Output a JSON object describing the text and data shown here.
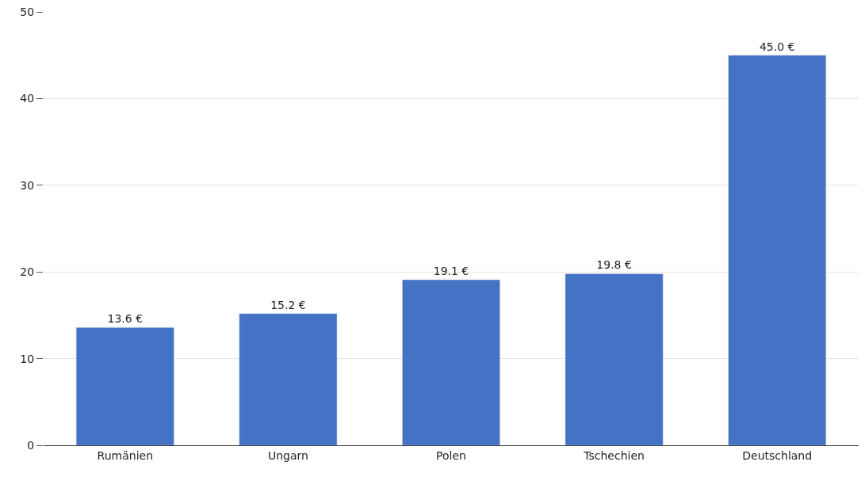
{
  "chart_data": {
    "type": "bar",
    "categories": [
      "Rumänien",
      "Ungarn",
      "Polen",
      "Tschechien",
      "Deutschland"
    ],
    "values": [
      13.6,
      15.2,
      19.1,
      19.8,
      45.0
    ],
    "value_labels": [
      "13.6 €",
      "15.2 €",
      "19.1 €",
      "19.8 €",
      "45.0 €"
    ],
    "color": "#4472c4",
    "ylim": [
      0,
      50
    ],
    "yticks": [
      0,
      10,
      20,
      30,
      40,
      50
    ],
    "grid": "y",
    "legend": false
  }
}
